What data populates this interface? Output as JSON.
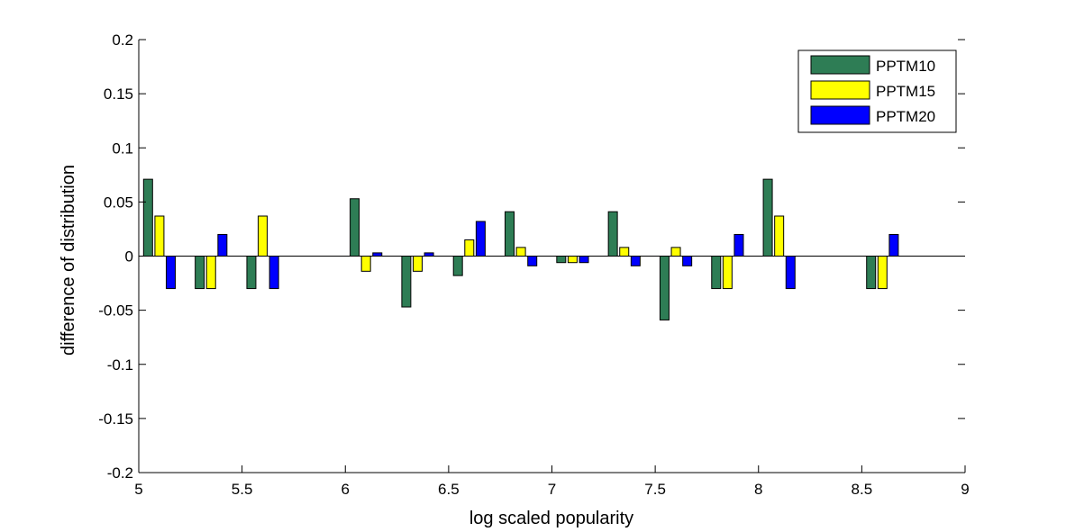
{
  "chart_data": {
    "type": "bar",
    "title": "",
    "xlabel": "log scaled popularity",
    "ylabel": "difference of distribution",
    "xlim": [
      5,
      9
    ],
    "ylim": [
      -0.2,
      0.2
    ],
    "xticks": [
      5,
      5.5,
      6,
      6.5,
      7,
      7.5,
      8,
      8.5,
      9
    ],
    "xtick_labels": [
      "5",
      "5.5",
      "6",
      "6.5",
      "7",
      "7.5",
      "8",
      "8.5",
      "9"
    ],
    "yticks": [
      -0.2,
      -0.15,
      -0.1,
      -0.05,
      0,
      0.05,
      0.1,
      0.15,
      0.2
    ],
    "ytick_labels": [
      "-0.2",
      "-0.15",
      "-0.1",
      "-0.05",
      "0",
      "0.05",
      "0.1",
      "0.15",
      "0.2"
    ],
    "grid": false,
    "legend_position": "top-right",
    "x": [
      5.1,
      5.35,
      5.6,
      6.1,
      6.35,
      6.6,
      6.85,
      7.1,
      7.35,
      7.6,
      7.85,
      8.1,
      8.6
    ],
    "series": [
      {
        "name": "PPTM10",
        "color": "#2e7d55",
        "values": [
          0.071,
          -0.03,
          -0.03,
          0.053,
          -0.047,
          -0.018,
          0.041,
          -0.006,
          0.041,
          -0.059,
          -0.03,
          0.071,
          -0.03
        ]
      },
      {
        "name": "PPTM15",
        "color": "#ffff00",
        "values": [
          0.037,
          -0.03,
          0.037,
          -0.014,
          -0.014,
          0.015,
          0.008,
          -0.006,
          0.008,
          0.008,
          -0.03,
          0.037,
          -0.03
        ]
      },
      {
        "name": "PPTM20",
        "color": "#0000ff",
        "values": [
          -0.03,
          0.02,
          -0.03,
          0.003,
          0.003,
          0.032,
          -0.009,
          -0.006,
          -0.009,
          -0.009,
          0.02,
          -0.03,
          0.02
        ]
      }
    ]
  }
}
